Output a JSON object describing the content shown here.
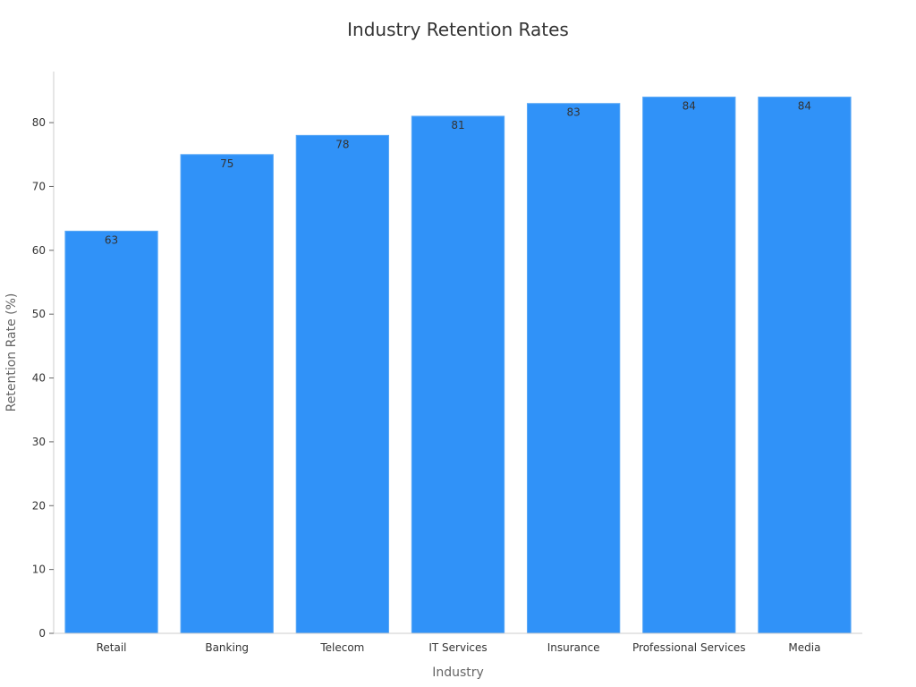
{
  "chart_data": {
    "type": "bar",
    "title": "Industry Retention Rates",
    "xlabel": "Industry",
    "ylabel": "Retention Rate (%)",
    "categories": [
      "Retail",
      "Banking",
      "Telecom",
      "IT Services",
      "Insurance",
      "Professional Services",
      "Media"
    ],
    "values": [
      63,
      75,
      78,
      81,
      83,
      84,
      84
    ],
    "data_labels": [
      "63",
      "75",
      "78",
      "81",
      "83",
      "84",
      "84"
    ],
    "y_ticks": [
      "0",
      "10",
      "20",
      "30",
      "40",
      "50",
      "60",
      "70",
      "80"
    ],
    "ylim": [
      0,
      88
    ],
    "grid": false,
    "legend": "none",
    "bar_color": "#3092F8",
    "bar_edge_color": "#5AA8F5"
  }
}
